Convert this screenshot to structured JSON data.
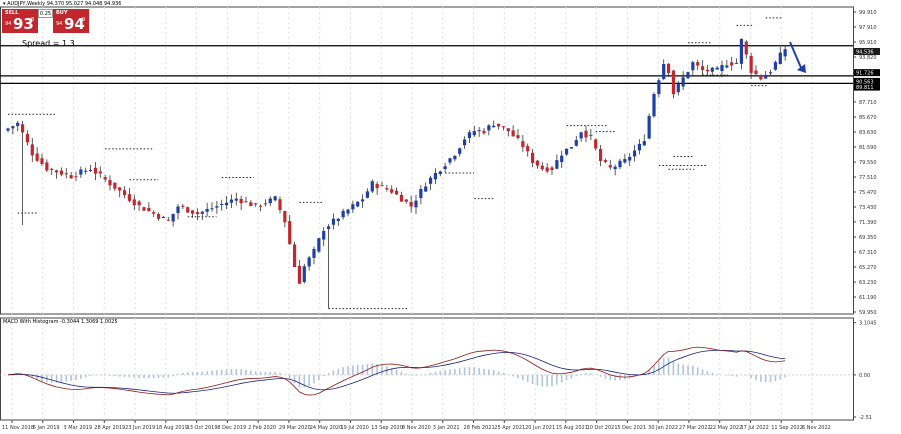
{
  "header": {
    "symbol_line": "AUDJPY,Weekly  94.370 95.027 94.048 94.936"
  },
  "trade_panel": {
    "sell_label": "SELL",
    "buy_label": "BUY",
    "lot": "0.25",
    "sell_prefix": "94",
    "sell_big": "93",
    "sell_sup": "8",
    "buy_prefix": "94",
    "buy_big": "94",
    "buy_sup": "9"
  },
  "spread_text": "Spread = 1.3",
  "macd_label": "MACD With Histogram -0.3044 1.3069 1.0025",
  "colors": {
    "bull": "#1f3fa8",
    "bear": "#c1272d",
    "macd_line": "#8b1a1a",
    "signal_line": "#1a237e",
    "histogram": "#b0c4de",
    "arrow": "#1f3fa8"
  },
  "chart_data": [
    {
      "type": "candlestick",
      "ylim": [
        59.95,
        99.91
      ],
      "price_ticks": [
        "99.910",
        "97.910",
        "95.910",
        "93.820",
        "91.750",
        "89.750",
        "87.710",
        "85.670",
        "83.630",
        "81.590",
        "79.550",
        "77.510",
        "75.470",
        "73.430",
        "71.390",
        "69.350",
        "67.310",
        "65.270",
        "63.230",
        "61.190",
        "59.950"
      ],
      "highlighted_levels": [
        "94.536",
        "91.726",
        "90.563",
        "89.811"
      ],
      "x_ticks": [
        "11 Nov 2018",
        "6 Jan 2019",
        "3 Mar 2019",
        "28 Apr 2019",
        "23 Jun 2019",
        "18 Aug 2019",
        "13 Oct 2019",
        "8 Dec 2019",
        "2 Feb 2020",
        "29 Mar 2020",
        "24 May 2020",
        "19 Jul 2020",
        "13 Sep 2020",
        "8 Nov 2020",
        "3 Jan 2021",
        "28 Feb 2021",
        "25 Apr 2021",
        "20 Jun 2021",
        "15 Aug 2021",
        "10 Oct 2021",
        "5 Dec 2021",
        "30 Jan 2022",
        "27 Mar 2022",
        "22 May 2022",
        "17 Jul 2022",
        "11 Sep 2022",
        "6 Nov 2022"
      ],
      "horizontal_lines": [
        95.3,
        91.3,
        90.3
      ],
      "close_path": [
        [
          0,
          84
        ],
        [
          3,
          85
        ],
        [
          6,
          81
        ],
        [
          9,
          79
        ],
        [
          14,
          78
        ],
        [
          18,
          79
        ],
        [
          22,
          77
        ],
        [
          26,
          75
        ],
        [
          28,
          74
        ],
        [
          31,
          73
        ],
        [
          34,
          72
        ],
        [
          36,
          74
        ],
        [
          40,
          73
        ],
        [
          44,
          74
        ],
        [
          48,
          75
        ],
        [
          52,
          74
        ],
        [
          56,
          75
        ],
        [
          58,
          72
        ],
        [
          59,
          69
        ],
        [
          60,
          66
        ],
        [
          61,
          64
        ],
        [
          62,
          66
        ],
        [
          64,
          68
        ],
        [
          66,
          71
        ],
        [
          70,
          73
        ],
        [
          74,
          75
        ],
        [
          76,
          77
        ],
        [
          80,
          76
        ],
        [
          82,
          75
        ],
        [
          84,
          74
        ],
        [
          87,
          77
        ],
        [
          90,
          79
        ],
        [
          93,
          81
        ],
        [
          95,
          83
        ],
        [
          97,
          84
        ],
        [
          99,
          84
        ],
        [
          101,
          85
        ],
        [
          104,
          84
        ],
        [
          107,
          82
        ],
        [
          109,
          80
        ],
        [
          111,
          79
        ],
        [
          113,
          79
        ],
        [
          115,
          81
        ],
        [
          117,
          82
        ],
        [
          119,
          84
        ],
        [
          121,
          83
        ],
        [
          123,
          80
        ],
        [
          125,
          79
        ],
        [
          128,
          80
        ],
        [
          131,
          82
        ],
        [
          132,
          83
        ],
        [
          133,
          86
        ],
        [
          134,
          89
        ],
        [
          135,
          91
        ],
        [
          136,
          93
        ],
        [
          137,
          92
        ],
        [
          138,
          89
        ],
        [
          140,
          91
        ],
        [
          142,
          93
        ],
        [
          144,
          92
        ],
        [
          147,
          92
        ],
        [
          149,
          93
        ],
        [
          151,
          93
        ],
        [
          152,
          96
        ],
        [
          153,
          94
        ],
        [
          154,
          92
        ],
        [
          156,
          91
        ],
        [
          158,
          92
        ],
        [
          160,
          94
        ],
        [
          161,
          94.9
        ]
      ]
    },
    {
      "type": "line",
      "title": "MACD With Histogram",
      "values_label": "-0.3044 1.3069 1.0025",
      "ylim": [
        -2.5,
        3.2
      ],
      "ticks": [
        "3.1045",
        "0.00",
        "-2.51"
      ]
    }
  ]
}
